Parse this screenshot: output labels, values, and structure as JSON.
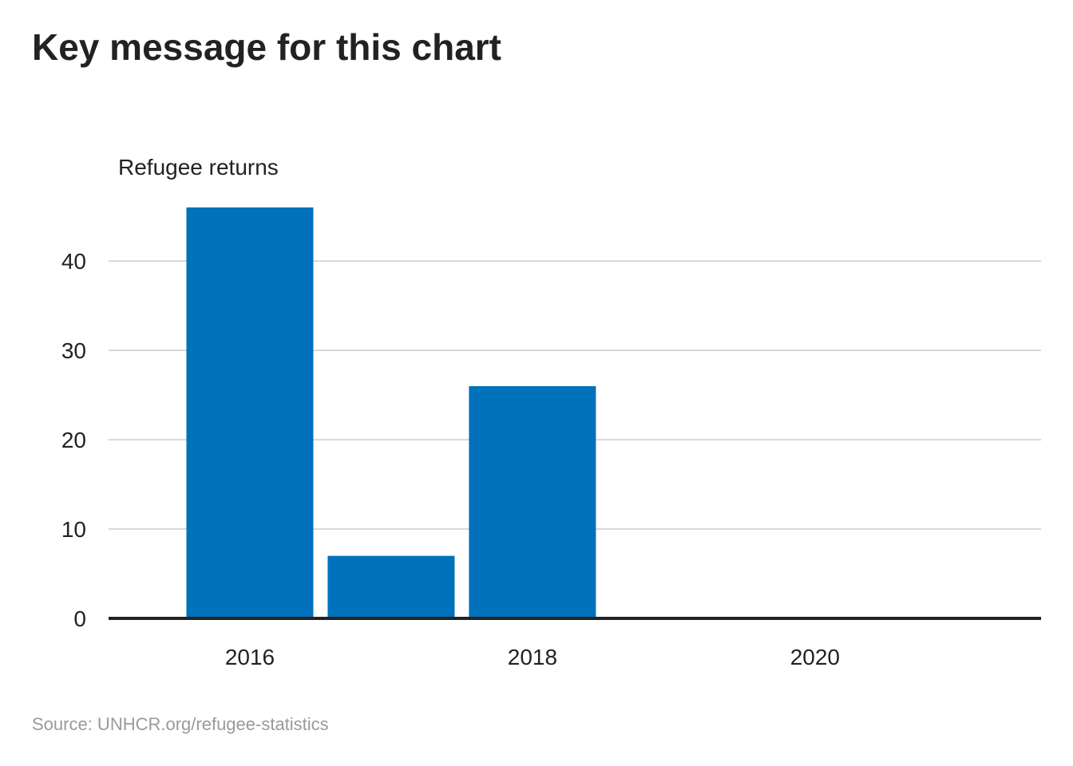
{
  "title": "Key message for this chart",
  "source": "Source: UNHCR.org/refugee-statistics",
  "colors": {
    "bar": "#0072bc",
    "text": "#222222",
    "grid": "#cccccc",
    "source_text": "#9a9a9a"
  },
  "chart_data": {
    "type": "bar",
    "ylabel": "Refugee returns",
    "xlabel": "",
    "x": [
      2016,
      2017,
      2018,
      2019,
      2020,
      2021
    ],
    "values": [
      46,
      7,
      26,
      0,
      0,
      0
    ],
    "xlim": [
      2015,
      2021.6
    ],
    "ylim": [
      0,
      46
    ],
    "yticks": [
      0,
      10,
      20,
      30,
      40
    ],
    "xticks": [
      2016,
      2018,
      2020
    ],
    "grid": true,
    "legend": "none"
  }
}
